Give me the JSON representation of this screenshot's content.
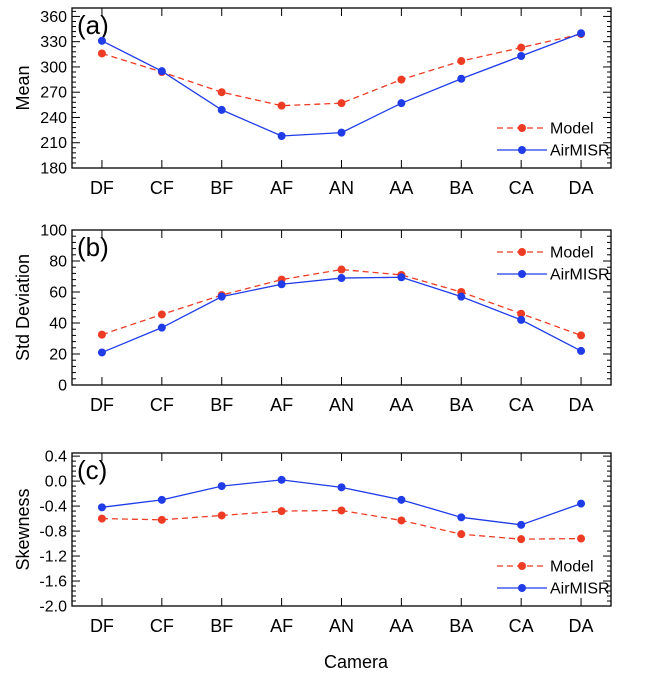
{
  "chart_data": [
    {
      "type": "line",
      "panel_label": "(a)",
      "ylabel": "Mean",
      "categories": [
        "DF",
        "CF",
        "BF",
        "AF",
        "AN",
        "AA",
        "BA",
        "CA",
        "DA"
      ],
      "ylim": [
        180,
        370
      ],
      "yticks": [
        180,
        210,
        240,
        270,
        300,
        330,
        360
      ],
      "ytick_labels": [
        "180",
        "210",
        "240",
        "270",
        "300",
        "330",
        "360"
      ],
      "grid": false,
      "legend_position": "lower-right",
      "series": [
        {
          "name": "Model",
          "color": "#ee3b24",
          "style": "dashed",
          "values": [
            316,
            294,
            270,
            254,
            257,
            285,
            307,
            323,
            339
          ]
        },
        {
          "name": "AirMISR",
          "color": "#1f3ce8",
          "style": "solid",
          "values": [
            331,
            295,
            249,
            218,
            222,
            257,
            286,
            313,
            340
          ]
        }
      ]
    },
    {
      "type": "line",
      "panel_label": "(b)",
      "ylabel": "Std Deviation",
      "categories": [
        "DF",
        "CF",
        "BF",
        "AF",
        "AN",
        "AA",
        "BA",
        "CA",
        "DA"
      ],
      "ylim": [
        0,
        100
      ],
      "yticks": [
        0,
        20,
        40,
        60,
        80,
        100
      ],
      "ytick_labels": [
        "0",
        "20",
        "40",
        "60",
        "80",
        "100"
      ],
      "grid": false,
      "legend_position": "upper-right",
      "series": [
        {
          "name": "Model",
          "color": "#ee3b24",
          "style": "dashed",
          "values": [
            32.5,
            45.5,
            58,
            68,
            74.5,
            71,
            60,
            46,
            32
          ]
        },
        {
          "name": "AirMISR",
          "color": "#1f3ce8",
          "style": "solid",
          "values": [
            21,
            37,
            57,
            65,
            69,
            69.5,
            57,
            42,
            22
          ]
        }
      ]
    },
    {
      "type": "line",
      "panel_label": "(c)",
      "ylabel": "Skewness",
      "categories": [
        "DF",
        "CF",
        "BF",
        "AF",
        "AN",
        "AA",
        "BA",
        "CA",
        "DA"
      ],
      "ylim": [
        -2.0,
        0.45
      ],
      "yticks": [
        -2.0,
        -1.6,
        -1.2,
        -0.8,
        -0.4,
        0.0,
        0.4
      ],
      "ytick_labels": [
        "-2.0",
        "-1.6",
        "-1.2",
        "-0.8",
        "-0.4",
        "0.0",
        "0.4"
      ],
      "grid": false,
      "legend_position": "lower-right",
      "series": [
        {
          "name": "Model",
          "color": "#ee3b24",
          "style": "dashed",
          "values": [
            -0.6,
            -0.62,
            -0.55,
            -0.48,
            -0.47,
            -0.63,
            -0.85,
            -0.93,
            -0.92
          ]
        },
        {
          "name": "AirMISR",
          "color": "#1f3ce8",
          "style": "solid",
          "values": [
            -0.42,
            -0.3,
            -0.08,
            0.02,
            -0.1,
            -0.3,
            -0.58,
            -0.7,
            -0.36
          ]
        }
      ]
    }
  ],
  "xlabel": "Camera"
}
